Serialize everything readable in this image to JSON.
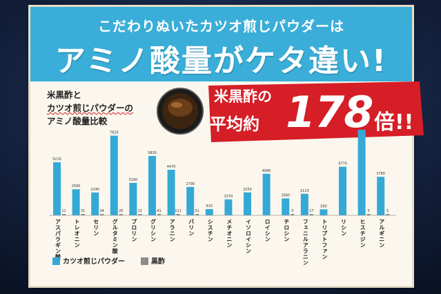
{
  "header": {
    "line1": "こだわりぬいたカツオ煎じパウダーは",
    "line2": "アミノ酸量がケタ違い!"
  },
  "subtitle": {
    "line1": "米黒酢と",
    "line2": "カツオ煎じパウダーの",
    "line3": "アミノ酸量比較"
  },
  "badge": {
    "line1": "米黒酢の",
    "line2": "平均約",
    "number": "178",
    "suffix": "倍!!"
  },
  "colors": {
    "katsuo": "#35a9d6",
    "kurozu": "#8c8c8c",
    "banner": "#3aaed8",
    "badge": "#d51e26"
  },
  "chart_data": {
    "type": "bar",
    "title": "",
    "xlabel": "",
    "ylabel": "",
    "ylim": [
      0,
      8400
    ],
    "categories": [
      "アスパラギン酸",
      "トレオニン",
      "セリン",
      "グルタミン酸",
      "プロリン",
      "グリシン",
      "アラニン",
      "バリン",
      "シスチン",
      "メチオニン",
      "イソロイシン",
      "ロイシン",
      "チロシン",
      "フェニルアラニン",
      "トリプトファン",
      "リシン",
      "ヒスチジン",
      "アルギニン"
    ],
    "series": [
      {
        "name": "カツオ煎じパウダー",
        "values": [
          5210,
          2560,
          2240,
          7820,
          3190,
          5830,
          4470,
          2790,
          610,
          1570,
          2250,
          4080,
          1660,
          2110,
          590,
          4770,
          8400,
          3780
        ],
        "labels": [
          "5210",
          "2560",
          "2240",
          "7820",
          "3190",
          "5830",
          "4470",
          "2790",
          "610",
          "1570",
          "2250",
          "4080",
          "1660",
          "2110",
          "590",
          "4770",
          "",
          "3780"
        ]
      },
      {
        "name": "黒酢",
        "values": [
          11,
          31,
          34,
          26,
          21,
          41,
          111,
          51,
          null,
          null,
          null,
          null,
          5,
          17,
          null,
          null,
          5,
          5
        ],
        "labels": [
          "11",
          "31",
          "34",
          "26",
          "21",
          "41",
          "111",
          "51",
          "",
          "",
          "",
          "",
          "5",
          "17",
          "",
          "",
          "5",
          "5"
        ]
      }
    ],
    "legend": "bottom-left"
  }
}
